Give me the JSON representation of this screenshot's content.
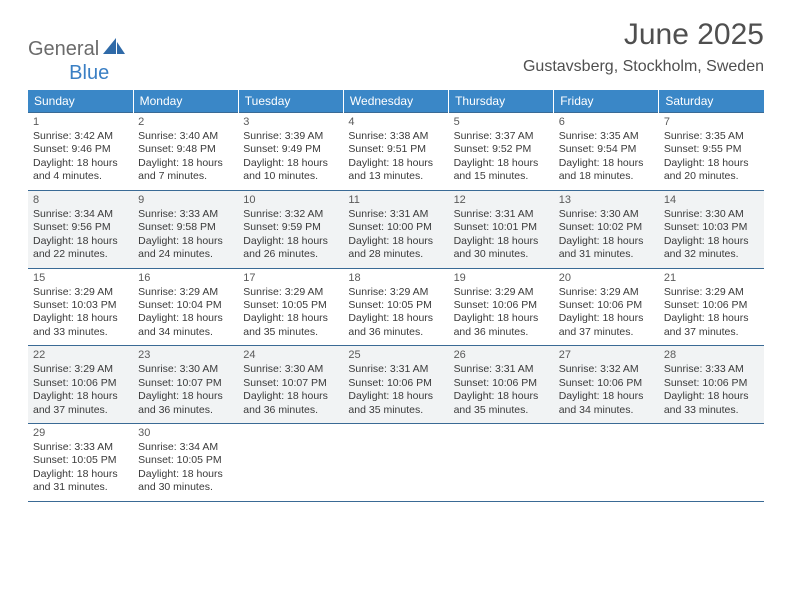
{
  "brand": {
    "part1": "General",
    "part2": "Blue"
  },
  "title": "June 2025",
  "location": "Gustavsberg, Stockholm, Sweden",
  "colors": {
    "header_bg": "#3a87c7",
    "header_text": "#ffffff",
    "row_alt_bg": "#f1f3f4",
    "row_border": "#3a6a95",
    "text": "#3a3a3a",
    "title_text": "#4f4f4f",
    "logo_gray": "#6b6b6b",
    "logo_blue": "#3a7fc4"
  },
  "typography": {
    "title_fontsize": 30,
    "location_fontsize": 16,
    "header_fontsize": 12,
    "daynum_fontsize": 11,
    "detail_fontsize": 10.5
  },
  "weekdays": [
    "Sunday",
    "Monday",
    "Tuesday",
    "Wednesday",
    "Thursday",
    "Friday",
    "Saturday"
  ],
  "weeks": [
    {
      "alt": false,
      "days": [
        {
          "num": "1",
          "sunrise": "Sunrise: 3:42 AM",
          "sunset": "Sunset: 9:46 PM",
          "daylight": "Daylight: 18 hours and 4 minutes."
        },
        {
          "num": "2",
          "sunrise": "Sunrise: 3:40 AM",
          "sunset": "Sunset: 9:48 PM",
          "daylight": "Daylight: 18 hours and 7 minutes."
        },
        {
          "num": "3",
          "sunrise": "Sunrise: 3:39 AM",
          "sunset": "Sunset: 9:49 PM",
          "daylight": "Daylight: 18 hours and 10 minutes."
        },
        {
          "num": "4",
          "sunrise": "Sunrise: 3:38 AM",
          "sunset": "Sunset: 9:51 PM",
          "daylight": "Daylight: 18 hours and 13 minutes."
        },
        {
          "num": "5",
          "sunrise": "Sunrise: 3:37 AM",
          "sunset": "Sunset: 9:52 PM",
          "daylight": "Daylight: 18 hours and 15 minutes."
        },
        {
          "num": "6",
          "sunrise": "Sunrise: 3:35 AM",
          "sunset": "Sunset: 9:54 PM",
          "daylight": "Daylight: 18 hours and 18 minutes."
        },
        {
          "num": "7",
          "sunrise": "Sunrise: 3:35 AM",
          "sunset": "Sunset: 9:55 PM",
          "daylight": "Daylight: 18 hours and 20 minutes."
        }
      ]
    },
    {
      "alt": true,
      "days": [
        {
          "num": "8",
          "sunrise": "Sunrise: 3:34 AM",
          "sunset": "Sunset: 9:56 PM",
          "daylight": "Daylight: 18 hours and 22 minutes."
        },
        {
          "num": "9",
          "sunrise": "Sunrise: 3:33 AM",
          "sunset": "Sunset: 9:58 PM",
          "daylight": "Daylight: 18 hours and 24 minutes."
        },
        {
          "num": "10",
          "sunrise": "Sunrise: 3:32 AM",
          "sunset": "Sunset: 9:59 PM",
          "daylight": "Daylight: 18 hours and 26 minutes."
        },
        {
          "num": "11",
          "sunrise": "Sunrise: 3:31 AM",
          "sunset": "Sunset: 10:00 PM",
          "daylight": "Daylight: 18 hours and 28 minutes."
        },
        {
          "num": "12",
          "sunrise": "Sunrise: 3:31 AM",
          "sunset": "Sunset: 10:01 PM",
          "daylight": "Daylight: 18 hours and 30 minutes."
        },
        {
          "num": "13",
          "sunrise": "Sunrise: 3:30 AM",
          "sunset": "Sunset: 10:02 PM",
          "daylight": "Daylight: 18 hours and 31 minutes."
        },
        {
          "num": "14",
          "sunrise": "Sunrise: 3:30 AM",
          "sunset": "Sunset: 10:03 PM",
          "daylight": "Daylight: 18 hours and 32 minutes."
        }
      ]
    },
    {
      "alt": false,
      "days": [
        {
          "num": "15",
          "sunrise": "Sunrise: 3:29 AM",
          "sunset": "Sunset: 10:03 PM",
          "daylight": "Daylight: 18 hours and 33 minutes."
        },
        {
          "num": "16",
          "sunrise": "Sunrise: 3:29 AM",
          "sunset": "Sunset: 10:04 PM",
          "daylight": "Daylight: 18 hours and 34 minutes."
        },
        {
          "num": "17",
          "sunrise": "Sunrise: 3:29 AM",
          "sunset": "Sunset: 10:05 PM",
          "daylight": "Daylight: 18 hours and 35 minutes."
        },
        {
          "num": "18",
          "sunrise": "Sunrise: 3:29 AM",
          "sunset": "Sunset: 10:05 PM",
          "daylight": "Daylight: 18 hours and 36 minutes."
        },
        {
          "num": "19",
          "sunrise": "Sunrise: 3:29 AM",
          "sunset": "Sunset: 10:06 PM",
          "daylight": "Daylight: 18 hours and 36 minutes."
        },
        {
          "num": "20",
          "sunrise": "Sunrise: 3:29 AM",
          "sunset": "Sunset: 10:06 PM",
          "daylight": "Daylight: 18 hours and 37 minutes."
        },
        {
          "num": "21",
          "sunrise": "Sunrise: 3:29 AM",
          "sunset": "Sunset: 10:06 PM",
          "daylight": "Daylight: 18 hours and 37 minutes."
        }
      ]
    },
    {
      "alt": true,
      "days": [
        {
          "num": "22",
          "sunrise": "Sunrise: 3:29 AM",
          "sunset": "Sunset: 10:06 PM",
          "daylight": "Daylight: 18 hours and 37 minutes."
        },
        {
          "num": "23",
          "sunrise": "Sunrise: 3:30 AM",
          "sunset": "Sunset: 10:07 PM",
          "daylight": "Daylight: 18 hours and 36 minutes."
        },
        {
          "num": "24",
          "sunrise": "Sunrise: 3:30 AM",
          "sunset": "Sunset: 10:07 PM",
          "daylight": "Daylight: 18 hours and 36 minutes."
        },
        {
          "num": "25",
          "sunrise": "Sunrise: 3:31 AM",
          "sunset": "Sunset: 10:06 PM",
          "daylight": "Daylight: 18 hours and 35 minutes."
        },
        {
          "num": "26",
          "sunrise": "Sunrise: 3:31 AM",
          "sunset": "Sunset: 10:06 PM",
          "daylight": "Daylight: 18 hours and 35 minutes."
        },
        {
          "num": "27",
          "sunrise": "Sunrise: 3:32 AM",
          "sunset": "Sunset: 10:06 PM",
          "daylight": "Daylight: 18 hours and 34 minutes."
        },
        {
          "num": "28",
          "sunrise": "Sunrise: 3:33 AM",
          "sunset": "Sunset: 10:06 PM",
          "daylight": "Daylight: 18 hours and 33 minutes."
        }
      ]
    },
    {
      "alt": false,
      "days": [
        {
          "num": "29",
          "sunrise": "Sunrise: 3:33 AM",
          "sunset": "Sunset: 10:05 PM",
          "daylight": "Daylight: 18 hours and 31 minutes."
        },
        {
          "num": "30",
          "sunrise": "Sunrise: 3:34 AM",
          "sunset": "Sunset: 10:05 PM",
          "daylight": "Daylight: 18 hours and 30 minutes."
        },
        null,
        null,
        null,
        null,
        null
      ]
    }
  ]
}
